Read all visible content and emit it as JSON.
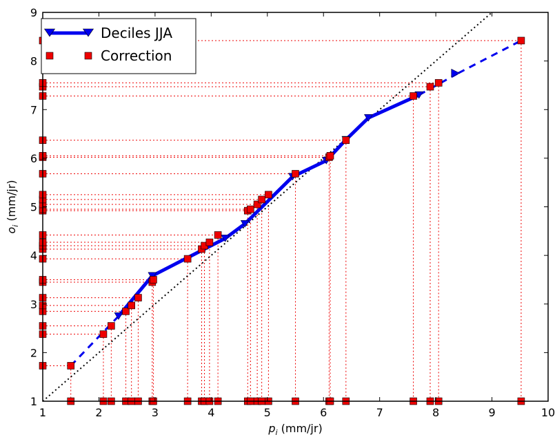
{
  "chart_data": {
    "type": "line",
    "xlabel_main": "p",
    "xlabel_sub": "i",
    "xlabel_unit": " (mm/jr)",
    "ylabel_main": "o",
    "ylabel_sub": "i",
    "ylabel_unit": " (mm/jr)",
    "xlim": [
      1,
      10
    ],
    "ylim": [
      1,
      9
    ],
    "xticks": [
      "1",
      "2",
      "3",
      "4",
      "5",
      "6",
      "7",
      "8",
      "9",
      "10"
    ],
    "yticks": [
      "1",
      "2",
      "3",
      "4",
      "5",
      "6",
      "7",
      "8",
      "9"
    ],
    "grid": false,
    "legend_position": "top-left",
    "colors": {
      "deciles": "#0000ee",
      "correction": "#ee0000",
      "marker_edge": "#000000",
      "identity": "#000000"
    },
    "series": [
      {
        "name": "Deciles JJA",
        "style": "solid line with triangle-down markers",
        "x": [
          2.35,
          2.95,
          4.25,
          4.6,
          5.45,
          6.05,
          6.4,
          6.8,
          7.7
        ],
        "y": [
          2.75,
          3.58,
          4.35,
          4.65,
          5.62,
          5.95,
          6.38,
          6.83,
          7.3
        ]
      },
      {
        "name": "Deciles JJA (extrapolated)",
        "style": "dashed",
        "segments": [
          {
            "x": [
              1.5,
              2.35
            ],
            "y": [
              1.73,
              2.75
            ]
          },
          {
            "x": [
              7.7,
              8.4
            ],
            "y": [
              7.3,
              7.75
            ]
          },
          {
            "x": [
              8.4,
              9.52
            ],
            "y": [
              7.75,
              8.42
            ]
          }
        ]
      },
      {
        "name": "Correction",
        "style": "square markers",
        "x": [
          1.5,
          2.08,
          2.22,
          2.48,
          2.58,
          2.7,
          2.95,
          2.97,
          3.58,
          3.83,
          3.88,
          3.97,
          4.12,
          4.65,
          4.7,
          4.82,
          4.9,
          5.02,
          5.5,
          6.1,
          6.12,
          6.4,
          7.6,
          7.9,
          8.05,
          9.52
        ],
        "y": [
          1.73,
          2.38,
          2.55,
          2.85,
          2.97,
          3.13,
          3.45,
          3.5,
          3.93,
          4.13,
          4.2,
          4.27,
          4.42,
          4.92,
          4.95,
          5.05,
          5.15,
          5.25,
          5.68,
          6.02,
          6.05,
          6.37,
          7.28,
          7.47,
          7.55,
          8.42
        ]
      },
      {
        "name": "identity line",
        "style": "dotted",
        "x": [
          1,
          9
        ],
        "y": [
          1,
          9
        ]
      }
    ]
  }
}
